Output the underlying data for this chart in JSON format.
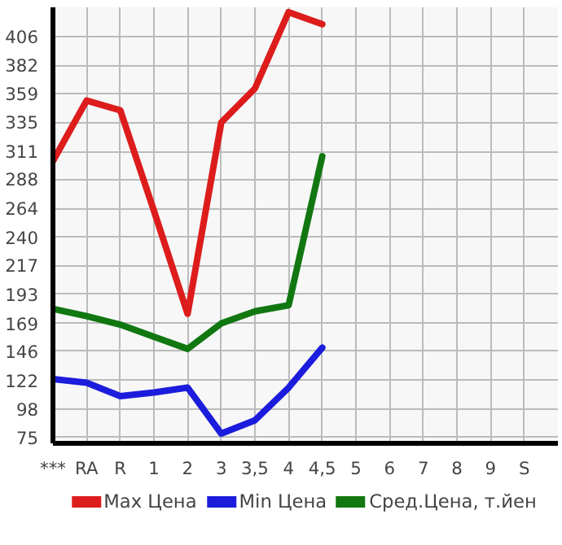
{
  "chart_data": {
    "type": "line",
    "categories": [
      "***",
      "RA",
      "R",
      "1",
      "2",
      "3",
      "3,5",
      "4",
      "4,5",
      "5",
      "6",
      "7",
      "8",
      "9",
      "S"
    ],
    "ylim": [
      70,
      430
    ],
    "yticks": [
      75,
      98,
      122,
      146,
      169,
      193,
      217,
      240,
      264,
      288,
      311,
      335,
      359,
      382,
      406
    ],
    "series": [
      {
        "name": "Max Цена",
        "color": "#dd1c1c",
        "values": [
          303,
          353,
          345,
          262,
          177,
          335,
          363,
          426,
          416,
          null,
          null,
          null,
          null,
          null,
          null
        ]
      },
      {
        "name": "Min Цена",
        "color": "#1c1cdd",
        "values": [
          123,
          120,
          109,
          112,
          116,
          78,
          89,
          116,
          149,
          null,
          null,
          null,
          null,
          null,
          null
        ]
      },
      {
        "name": "Сред.Цена, т.йен",
        "color": "#117711",
        "values": [
          181,
          175,
          168,
          158,
          148,
          169,
          179,
          184,
          307,
          null,
          null,
          null,
          null,
          null,
          null
        ]
      }
    ],
    "grid": true,
    "legend": "bottom",
    "marker": "none",
    "line_style": "solid"
  }
}
